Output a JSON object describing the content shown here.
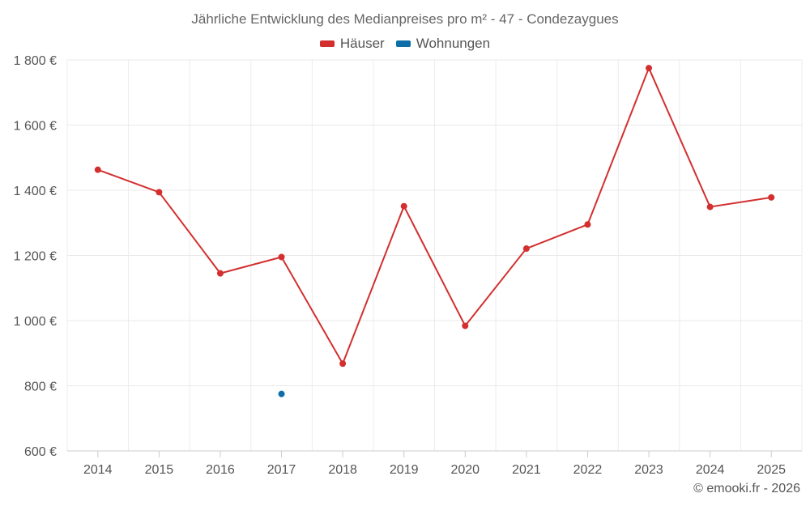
{
  "chart_data": {
    "type": "line",
    "title": "Jährliche Entwicklung des Medianpreises pro m² - 47 - Condezaygues",
    "xlabel": "",
    "ylabel": "",
    "categories": [
      "2014",
      "2015",
      "2016",
      "2017",
      "2018",
      "2019",
      "2020",
      "2021",
      "2022",
      "2023",
      "2024",
      "2025"
    ],
    "ylim": [
      600,
      1800
    ],
    "yticks": [
      600,
      800,
      1000,
      1200,
      1400,
      1600,
      1800
    ],
    "ytick_labels": [
      "600 €",
      "800 €",
      "1 000 €",
      "1 200 €",
      "1 400 €",
      "1 600 €",
      "1 800 €"
    ],
    "grid": true,
    "legend_position": "top-center",
    "series": [
      {
        "name": "Häuser",
        "color": "#d32f2f",
        "values": [
          1463,
          1394,
          1145,
          1195,
          868,
          1351,
          984,
          1221,
          1295,
          1775,
          1349,
          1378
        ]
      },
      {
        "name": "Wohnungen",
        "color": "#0d6ea8",
        "values": [
          null,
          null,
          null,
          775,
          null,
          null,
          null,
          null,
          null,
          null,
          null,
          null
        ]
      }
    ]
  },
  "copyright": "© emooki.fr - 2026"
}
